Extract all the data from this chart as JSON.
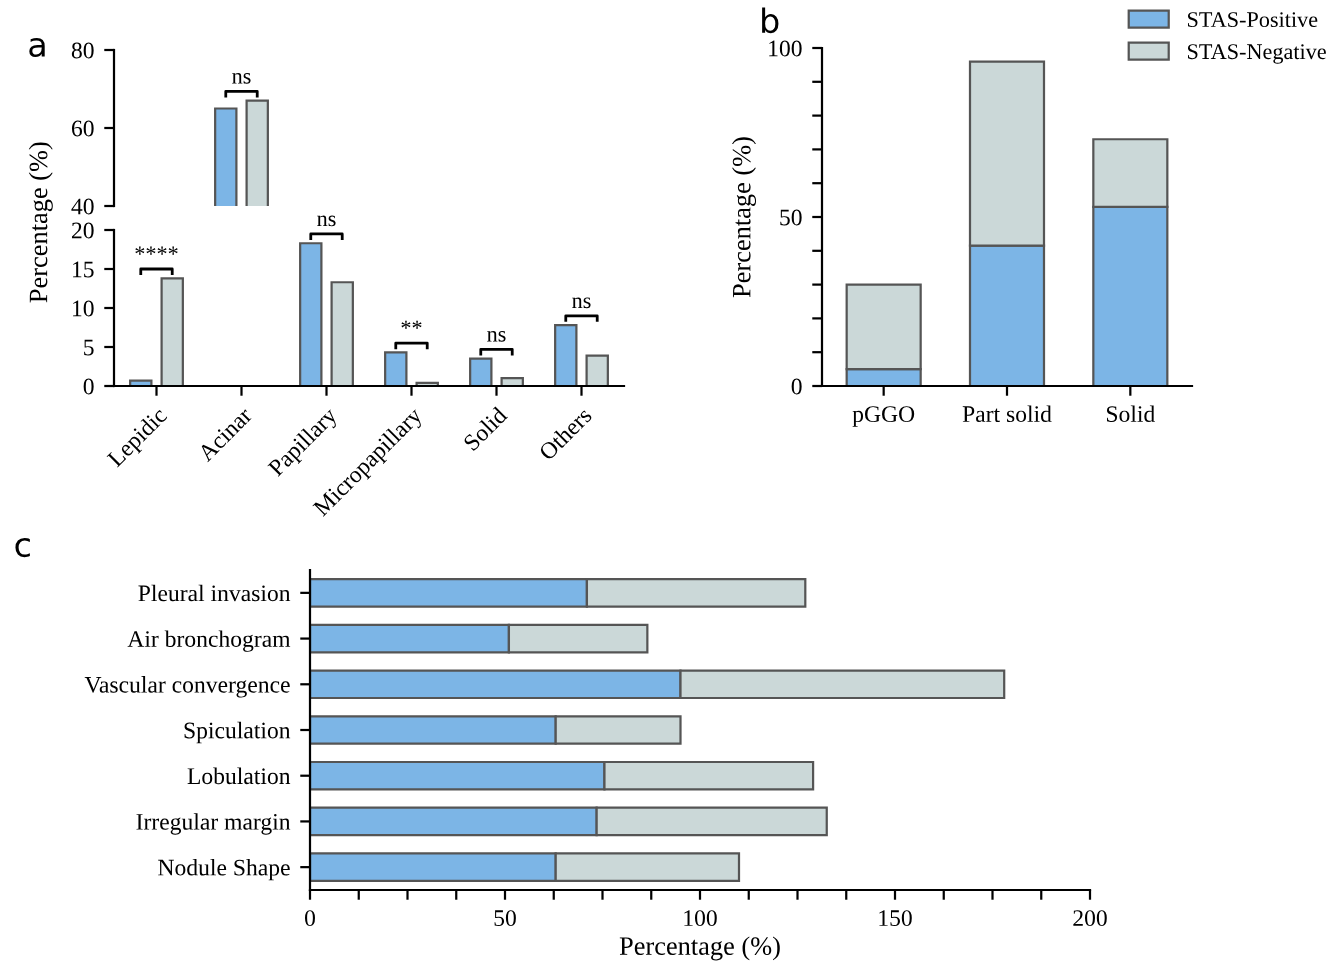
{
  "chart_data": [
    {
      "type": "bar",
      "title": "a",
      "categories": [
        "Lepidic",
        "Acinar",
        "Papillary",
        "Micropapillary",
        "Solid",
        "Others"
      ],
      "tick_labels": "y",
      "ylim": [
        40,
        80
      ],
      "yticks": [
        40,
        60,
        80
      ],
      "grid": false,
      "legend": false,
      "series": [
        {
          "color": "#7cb5e6",
          "values": [
            null,
            65,
            null,
            null,
            null,
            null
          ]
        },
        {
          "color": "#cbd8d8",
          "values": [
            null,
            67,
            null,
            null,
            null,
            null
          ]
        }
      ],
      "annotations": [
        {
          "text": "ns",
          "x": "Acinar",
          "y": 67
        }
      ]
    },
    {
      "type": "bar",
      "categories": [
        "Lepidic",
        "Acinar",
        "Papillary",
        "Micropapillary",
        "Solid",
        "Others"
      ],
      "ylabel": "Percentage (%)",
      "ylim": [
        0,
        20
      ],
      "yticks": [
        0,
        5,
        10,
        15,
        20
      ],
      "grid": false,
      "legend": false,
      "series": [
        {
          "color": "#7cb5e6",
          "values": [
            0.7,
            null,
            18.3,
            4.3,
            3.5,
            7.8
          ]
        },
        {
          "color": "#cbd8d8",
          "values": [
            13.8,
            null,
            13.3,
            0.4,
            1.0,
            3.9
          ]
        }
      ],
      "annotations": [
        {
          "text": "****",
          "x": "Lepidic",
          "y": 13.8
        },
        {
          "text": "ns",
          "x": "Papillary",
          "y": 18.3
        },
        {
          "text": "**",
          "x": "Micropapillary",
          "y": 4.3
        },
        {
          "text": "ns",
          "x": "Solid",
          "y": 3.5
        },
        {
          "text": "ns",
          "x": "Others",
          "y": 7.8
        }
      ]
    },
    {
      "type": "bar",
      "title": "b",
      "stacked": true,
      "categories": [
        "pGGO",
        "Part solid",
        "Solid"
      ],
      "ylabel": "Percentage (%)",
      "ylim": [
        0,
        100
      ],
      "yticks": [
        0,
        {
          "value": 10,
          "label": null
        },
        {
          "value": 20,
          "label": null
        },
        {
          "value": 30,
          "label": null
        },
        {
          "value": 40,
          "label": null
        },
        50,
        {
          "value": 60,
          "label": null
        },
        {
          "value": 70,
          "label": null
        },
        {
          "value": 80,
          "label": null
        },
        {
          "value": 90,
          "label": null
        },
        100
      ],
      "grid": false,
      "legend": "top right",
      "series": [
        {
          "name": "STAS-Positive",
          "color": "#7cb5e6",
          "values": [
            5,
            41.5,
            53
          ]
        },
        {
          "name": "STAS-Negative",
          "color": "#cbd8d8",
          "values": [
            25,
            54.5,
            20
          ]
        }
      ]
    },
    {
      "type": "bar",
      "title": "c",
      "stacked": true,
      "orientation": "horizontal",
      "categories": [
        "Pleural invasion",
        "Air bronchogram",
        "Vascular convergence",
        "Spiculation",
        "Lobulation",
        "Irregular margin",
        "Nodule Shape"
      ],
      "xlabel": "Percentage (%)",
      "xlim": [
        0,
        200
      ],
      "xticks": [
        0,
        {
          "value": 12.5,
          "label": null
        },
        {
          "value": 25,
          "label": null
        },
        {
          "value": 37.5,
          "label": null
        },
        50,
        {
          "value": 62.5,
          "label": null
        },
        {
          "value": 75,
          "label": null
        },
        {
          "value": 87.5,
          "label": null
        },
        100,
        {
          "value": 112.5,
          "label": null
        },
        {
          "value": 125,
          "label": null
        },
        {
          "value": 137.5,
          "label": null
        },
        150,
        {
          "value": 162.5,
          "label": null
        },
        {
          "value": 175,
          "label": null
        },
        {
          "value": 187.5,
          "label": null
        },
        200
      ],
      "grid": false,
      "legend": false,
      "series": [
        {
          "color": "#7cb5e6",
          "values": [
            71,
            51,
            95,
            63,
            75.5,
            73.5,
            63
          ]
        },
        {
          "color": "#cbd8d8",
          "values": [
            56,
            35.5,
            83,
            32,
            53.5,
            59,
            47
          ]
        }
      ]
    }
  ]
}
